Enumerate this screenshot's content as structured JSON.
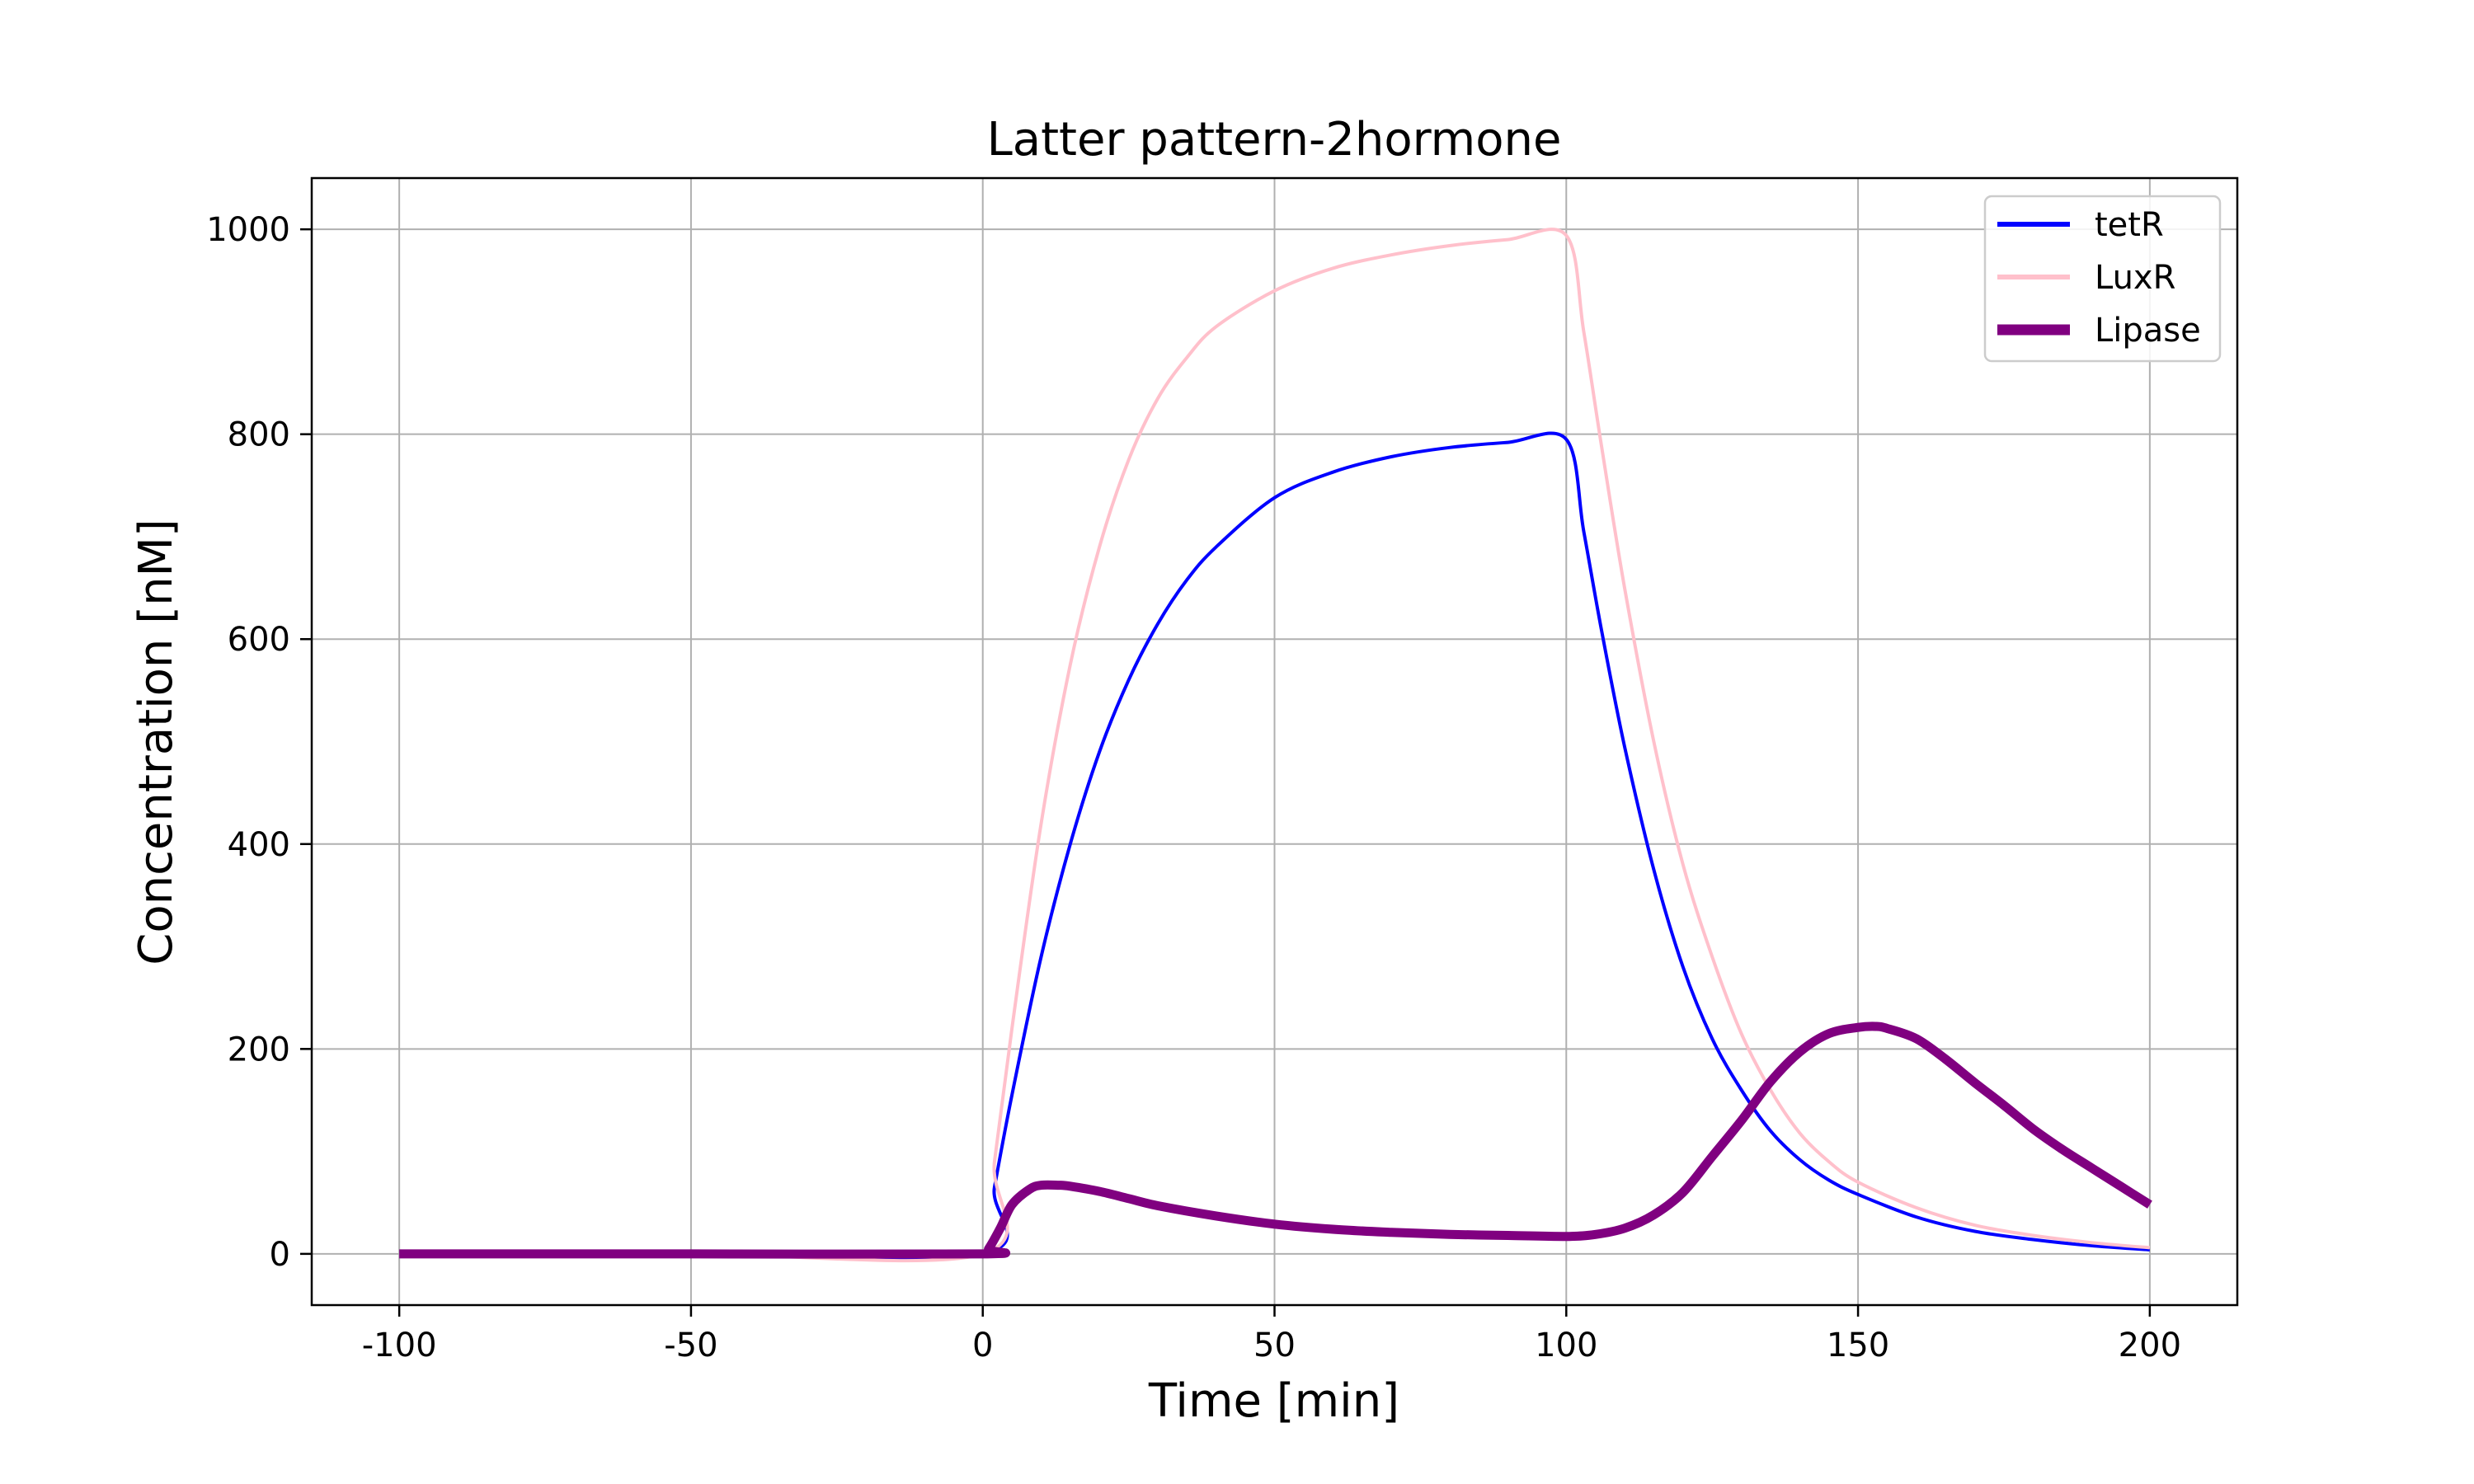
{
  "chart_data": {
    "type": "line",
    "title": "Latter pattern-2hormone",
    "xlabel": "Time [min]",
    "ylabel": "Concentration [nM]",
    "xlim": [
      -115,
      215
    ],
    "ylim": [
      -50,
      1050
    ],
    "xticks": [
      -100,
      -50,
      0,
      50,
      100,
      150,
      200
    ],
    "xtick_labels": [
      "-100",
      "-50",
      "0",
      "50",
      "100",
      "150",
      "200"
    ],
    "yticks": [
      0,
      200,
      400,
      600,
      800,
      1000
    ],
    "ytick_labels": [
      "0",
      "200",
      "400",
      "600",
      "800",
      "1000"
    ],
    "grid": true,
    "legend_position": "top-right",
    "series": [
      {
        "name": "tetR",
        "color": "#0000ff",
        "line_width": "thin",
        "x": [
          -100,
          -50,
          0,
          2,
          5,
          10,
          15,
          20,
          25,
          30,
          35,
          40,
          50,
          60,
          70,
          80,
          90,
          100,
          103,
          106,
          110,
          115,
          120,
          125,
          130,
          135,
          140,
          145,
          150,
          160,
          170,
          180,
          190,
          200
        ],
        "y": [
          0,
          0,
          0,
          65,
          155,
          290,
          400,
          490,
          560,
          615,
          658,
          690,
          738,
          763,
          778,
          787,
          792,
          795,
          705,
          610,
          495,
          375,
          280,
          210,
          160,
          120,
          92,
          72,
          58,
          36,
          22,
          14,
          8,
          4
        ]
      },
      {
        "name": "LuxR",
        "color": "#ffc0cb",
        "line_width": "thin",
        "x": [
          -100,
          -50,
          0,
          2,
          5,
          10,
          15,
          20,
          25,
          30,
          35,
          40,
          50,
          60,
          70,
          80,
          90,
          100,
          103,
          106,
          110,
          115,
          120,
          125,
          130,
          135,
          140,
          145,
          150,
          160,
          170,
          180,
          190,
          200
        ],
        "y": [
          0,
          0,
          0,
          90,
          220,
          420,
          575,
          690,
          775,
          835,
          875,
          905,
          940,
          962,
          975,
          984,
          990,
          994,
          900,
          790,
          650,
          500,
          380,
          290,
          215,
          160,
          118,
          90,
          70,
          45,
          28,
          18,
          11,
          6
        ]
      },
      {
        "name": "Lipase",
        "color": "#800080",
        "line_width": "thick",
        "x": [
          -100,
          -50,
          0,
          1,
          3,
          5,
          8,
          10,
          13,
          15,
          20,
          25,
          30,
          40,
          50,
          60,
          70,
          80,
          90,
          100,
          105,
          110,
          115,
          120,
          125,
          130,
          135,
          140,
          145,
          150,
          153,
          155,
          160,
          165,
          170,
          175,
          180,
          185,
          190,
          195,
          200
        ],
        "y": [
          0,
          0,
          0,
          5,
          25,
          48,
          63,
          67,
          67,
          66,
          61,
          54,
          47,
          37,
          29,
          24,
          21,
          19,
          18,
          17,
          19,
          25,
          38,
          60,
          95,
          130,
          168,
          197,
          215,
          221,
          222,
          220,
          210,
          190,
          167,
          145,
          122,
          102,
          84,
          66,
          48
        ]
      }
    ]
  }
}
